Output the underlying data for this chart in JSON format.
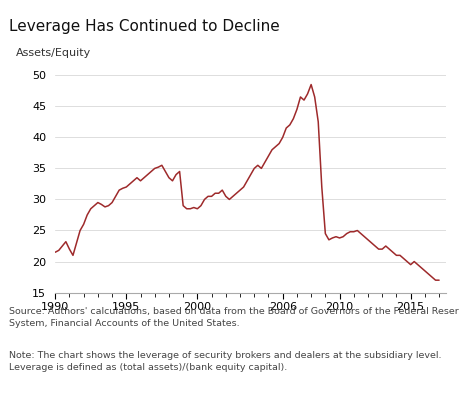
{
  "title": "Leverage Has Continued to Decline",
  "ylabel": "Assets/Equity",
  "line_color": "#9e2a2b",
  "background_color": "#ffffff",
  "plot_bg_color": "#ffffff",
  "xlim": [
    1990,
    2017.5
  ],
  "ylim": [
    15,
    50
  ],
  "yticks": [
    15,
    20,
    25,
    30,
    35,
    40,
    45,
    50
  ],
  "xticks": [
    1990,
    1995,
    2000,
    2006,
    2010,
    2015
  ],
  "xtick_labels": [
    "1990",
    "1995",
    "2000",
    "2006",
    "2010",
    "2015"
  ],
  "source_text": "Source: Authors' calculations, based on data from the Board of Governors of the Federal Reserve\nSystem, Financial Accounts of the United States.",
  "note_text": "Note: The chart shows the leverage of security brokers and dealers at the subsidiary level.\nLeverage is defined as (total assets)/(bank equity capital).",
  "x": [
    1990.0,
    1990.25,
    1990.5,
    1990.75,
    1991.0,
    1991.25,
    1991.5,
    1991.75,
    1992.0,
    1992.25,
    1992.5,
    1992.75,
    1993.0,
    1993.25,
    1993.5,
    1993.75,
    1994.0,
    1994.25,
    1994.5,
    1994.75,
    1995.0,
    1995.25,
    1995.5,
    1995.75,
    1996.0,
    1996.25,
    1996.5,
    1996.75,
    1997.0,
    1997.25,
    1997.5,
    1997.75,
    1998.0,
    1998.25,
    1998.5,
    1998.75,
    1999.0,
    1999.25,
    1999.5,
    1999.75,
    2000.0,
    2000.25,
    2000.5,
    2000.75,
    2001.0,
    2001.25,
    2001.5,
    2001.75,
    2002.0,
    2002.25,
    2002.5,
    2002.75,
    2003.0,
    2003.25,
    2003.5,
    2003.75,
    2004.0,
    2004.25,
    2004.5,
    2004.75,
    2005.0,
    2005.25,
    2005.5,
    2005.75,
    2006.0,
    2006.25,
    2006.5,
    2006.75,
    2007.0,
    2007.25,
    2007.5,
    2007.75,
    2008.0,
    2008.25,
    2008.5,
    2008.75,
    2009.0,
    2009.25,
    2009.5,
    2009.75,
    2010.0,
    2010.25,
    2010.5,
    2010.75,
    2011.0,
    2011.25,
    2011.5,
    2011.75,
    2012.0,
    2012.25,
    2012.5,
    2012.75,
    2013.0,
    2013.25,
    2013.5,
    2013.75,
    2014.0,
    2014.25,
    2014.5,
    2014.75,
    2015.0,
    2015.25,
    2015.5,
    2015.75,
    2016.0,
    2016.25,
    2016.5,
    2016.75,
    2017.0
  ],
  "y": [
    21.5,
    21.8,
    22.5,
    23.2,
    22.0,
    21.0,
    23.0,
    25.0,
    26.0,
    27.5,
    28.5,
    29.0,
    29.5,
    29.2,
    28.8,
    29.0,
    29.5,
    30.5,
    31.5,
    31.8,
    32.0,
    32.5,
    33.0,
    33.5,
    33.0,
    33.5,
    34.0,
    34.5,
    35.0,
    35.2,
    35.5,
    34.5,
    33.5,
    33.0,
    34.0,
    34.5,
    29.0,
    28.5,
    28.5,
    28.7,
    28.5,
    29.0,
    30.0,
    30.5,
    30.5,
    31.0,
    31.0,
    31.5,
    30.5,
    30.0,
    30.5,
    31.0,
    31.5,
    32.0,
    33.0,
    34.0,
    35.0,
    35.5,
    35.0,
    36.0,
    37.0,
    38.0,
    38.5,
    39.0,
    40.0,
    41.5,
    42.0,
    43.0,
    44.5,
    46.5,
    46.0,
    47.0,
    48.5,
    46.5,
    42.5,
    32.0,
    24.5,
    23.5,
    23.8,
    24.0,
    23.8,
    24.0,
    24.5,
    24.8,
    24.8,
    25.0,
    24.5,
    24.0,
    23.5,
    23.0,
    22.5,
    22.0,
    22.0,
    22.5,
    22.0,
    21.5,
    21.0,
    21.0,
    20.5,
    20.0,
    19.5,
    20.0,
    19.5,
    19.0,
    18.5,
    18.0,
    17.5,
    17.0,
    17.0
  ]
}
